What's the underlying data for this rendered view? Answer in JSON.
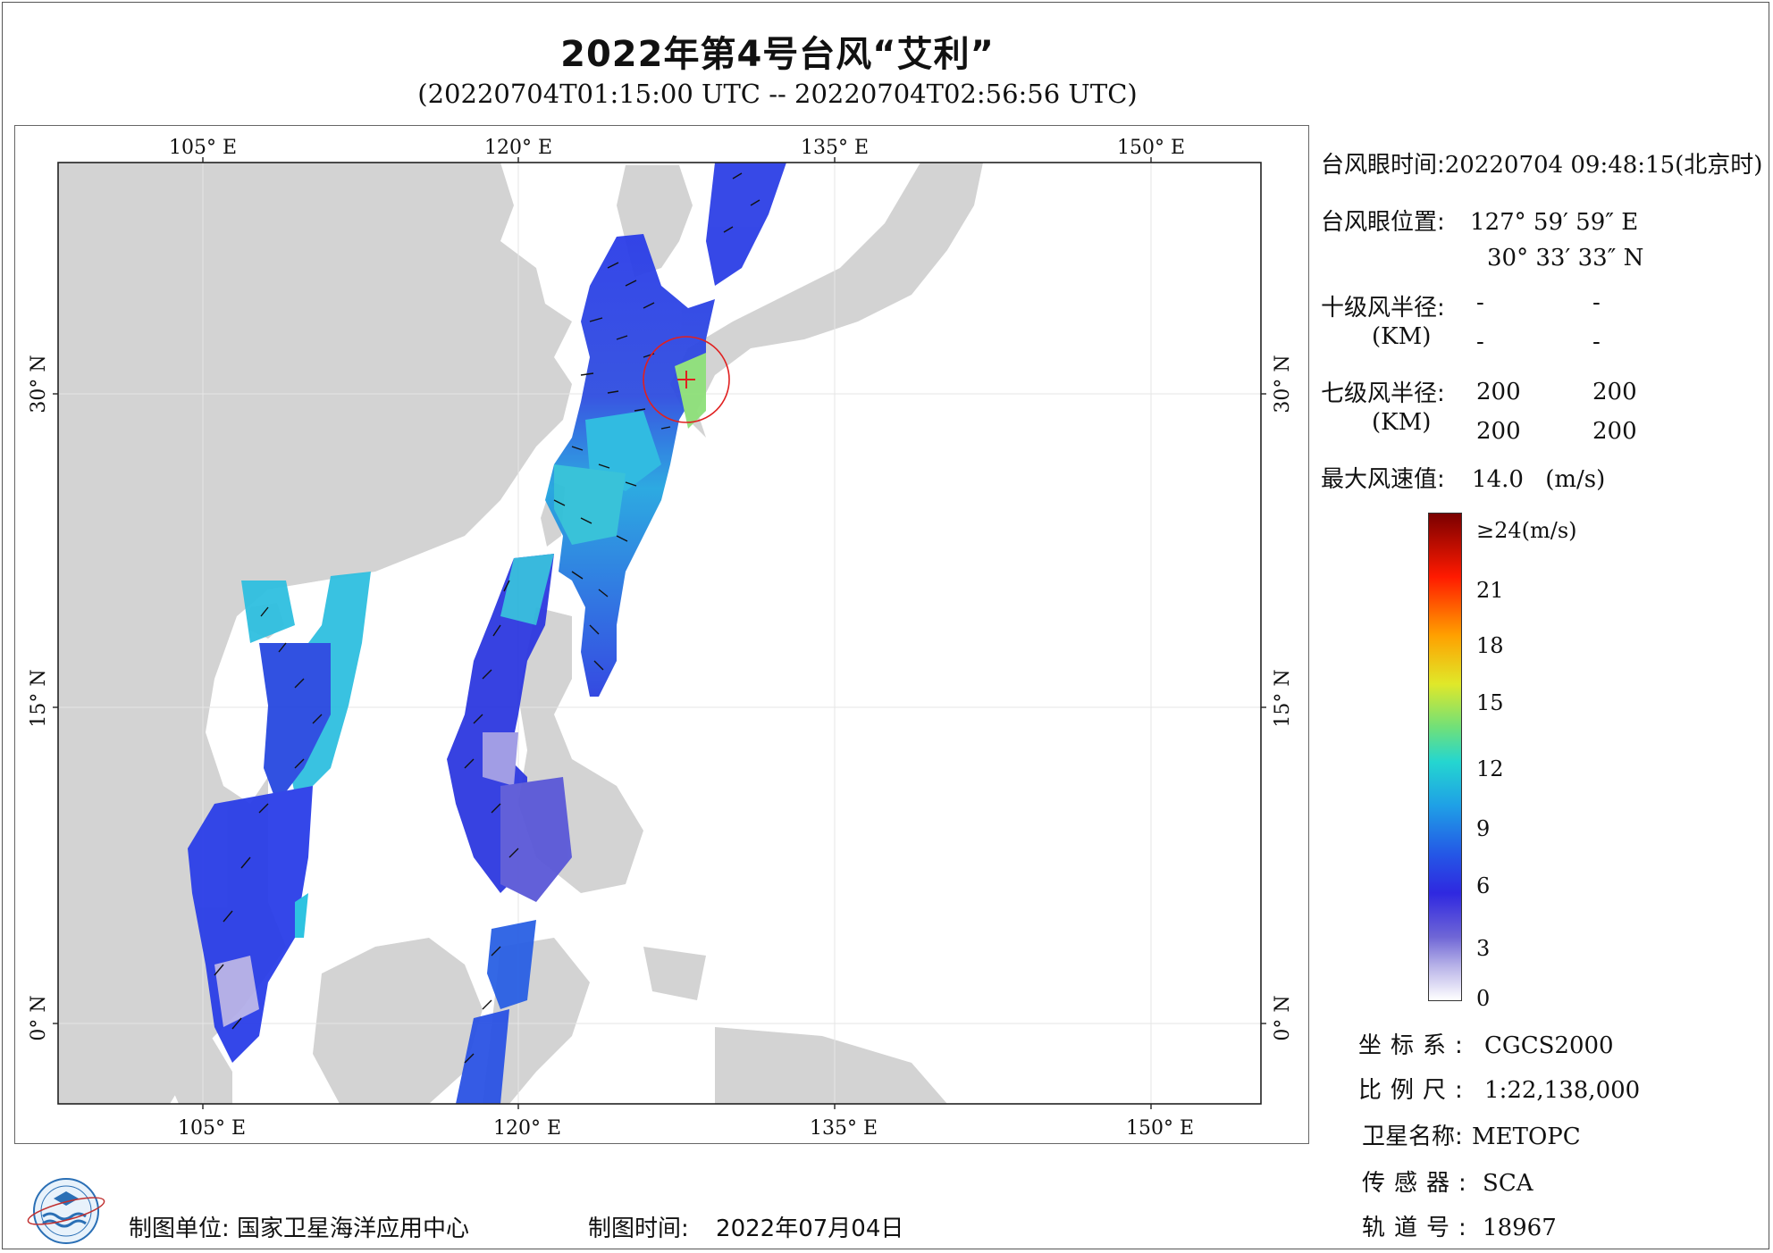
{
  "title": "2022年第4号台风“艾利”",
  "subtitle": "(20220704T01:15:00 UTC -- 20220704T02:56:56 UTC)",
  "map": {
    "lon_ticks_top": [
      "105° E",
      "120° E",
      "135° E",
      "150° E"
    ],
    "lon_ticks_bottom": [
      "105° E",
      "120° E",
      "135° E",
      "150° E"
    ],
    "lat_ticks_left": [
      "30° N",
      "15° N",
      "0° N"
    ],
    "lat_ticks_right": [
      "30° N",
      "15° N",
      "0° N"
    ],
    "land_color": "#d3d3d3",
    "typhoon_marker_color": "#e02020"
  },
  "info": {
    "eye_time_label": "台风眼时间:",
    "eye_time_value": "20220704 09:48:15(北京时)",
    "eye_pos_label": "台风眼位置:",
    "eye_lon": "127° 59′ 59″ E",
    "eye_lat": "30° 33′ 33″ N",
    "r10_label": "十级风半径:",
    "r10_unit": "(KM)",
    "r10_values": [
      "-",
      "-",
      "-",
      "-"
    ],
    "r7_label": "七级风半径:",
    "r7_unit": "(KM)",
    "r7_values": [
      "200",
      "200",
      "200",
      "200"
    ],
    "max_wind_label": "最大风速值:",
    "max_wind_value": "14.0",
    "max_wind_unit": "(m/s)"
  },
  "legend": {
    "ticks": [
      "≥24(m/s)",
      "21",
      "18",
      "15",
      "12",
      "9",
      "6",
      "3",
      "0"
    ]
  },
  "meta": {
    "crs_label": "坐标系:",
    "crs_value": "CGCS2000",
    "scale_label": "比例尺:",
    "scale_value": "1:22,138,000",
    "satellite_label": "卫星名称:",
    "satellite_value": "METOPC",
    "sensor_label": "传感器:",
    "sensor_value": "SCA",
    "orbit_label": "轨道号:",
    "orbit_value": "18967"
  },
  "footer": {
    "producer_label": "制图单位:",
    "producer_value": "国家卫星海洋应用中心",
    "date_label": "制图时间:",
    "date_value": "2022年07月04日"
  }
}
